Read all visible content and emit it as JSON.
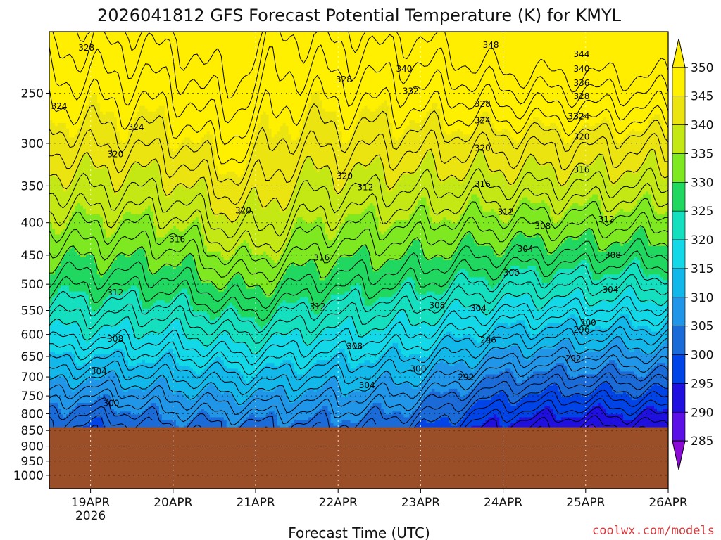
{
  "chart_data": {
    "type": "heatmap",
    "title": "2026041812 GFS Forecast Potential Temperature (K) for KMYL",
    "xlabel": "Forecast Time (UTC)",
    "credit": "coolwx.com/models",
    "x_ticks": [
      {
        "day": 19,
        "label": "19APR",
        "sublabel": "2026"
      },
      {
        "day": 20,
        "label": "20APR",
        "sublabel": ""
      },
      {
        "day": 21,
        "label": "21APR",
        "sublabel": ""
      },
      {
        "day": 22,
        "label": "22APR",
        "sublabel": ""
      },
      {
        "day": 23,
        "label": "23APR",
        "sublabel": ""
      },
      {
        "day": 24,
        "label": "24APR",
        "sublabel": ""
      },
      {
        "day": 25,
        "label": "25APR",
        "sublabel": ""
      },
      {
        "day": 26,
        "label": "26APR",
        "sublabel": ""
      }
    ],
    "xlim_days": [
      18.5,
      26
    ],
    "y_ticks": [
      250,
      300,
      350,
      400,
      450,
      500,
      550,
      600,
      650,
      700,
      750,
      800,
      850,
      900,
      950,
      1000
    ],
    "ylim_hpa": [
      200,
      1050
    ],
    "surface_pressure_hpa": 840,
    "colorbar": {
      "levels": [
        285,
        290,
        295,
        300,
        305,
        310,
        315,
        320,
        325,
        330,
        335,
        340,
        345,
        350
      ],
      "colors": [
        "#8c0ad6",
        "#5a10e6",
        "#1f10e0",
        "#0044e8",
        "#1a6ad8",
        "#2196e8",
        "#12b8ea",
        "#12d8e8",
        "#14e0c0",
        "#20d860",
        "#7ee820",
        "#c4e814",
        "#ece410",
        "#fff000"
      ],
      "under_color": "#a000d0",
      "over_color": "#ffee00"
    },
    "contour_labels": [
      {
        "day": 18.95,
        "p": 212,
        "v": "328"
      },
      {
        "day": 18.62,
        "p": 262,
        "v": "324"
      },
      {
        "day": 19.55,
        "p": 283,
        "v": "324"
      },
      {
        "day": 19.3,
        "p": 312,
        "v": "320"
      },
      {
        "day": 20.85,
        "p": 383,
        "v": "320"
      },
      {
        "day": 20.05,
        "p": 425,
        "v": "316"
      },
      {
        "day": 19.3,
        "p": 515,
        "v": "312"
      },
      {
        "day": 19.3,
        "p": 610,
        "v": "308"
      },
      {
        "day": 19.1,
        "p": 687,
        "v": "304"
      },
      {
        "day": 19.25,
        "p": 770,
        "v": "300"
      },
      {
        "day": 22.07,
        "p": 238,
        "v": "328"
      },
      {
        "day": 22.8,
        "p": 229,
        "v": "340"
      },
      {
        "day": 22.88,
        "p": 248,
        "v": "332"
      },
      {
        "day": 22.08,
        "p": 338,
        "v": "320"
      },
      {
        "day": 22.33,
        "p": 352,
        "v": "312"
      },
      {
        "day": 21.8,
        "p": 454,
        "v": "316"
      },
      {
        "day": 21.75,
        "p": 542,
        "v": "312"
      },
      {
        "day": 22.2,
        "p": 626,
        "v": "308"
      },
      {
        "day": 23.2,
        "p": 540,
        "v": "308"
      },
      {
        "day": 22.35,
        "p": 722,
        "v": "304"
      },
      {
        "day": 22.97,
        "p": 680,
        "v": "300"
      },
      {
        "day": 23.7,
        "p": 546,
        "v": "304"
      },
      {
        "day": 23.82,
        "p": 612,
        "v": "296"
      },
      {
        "day": 23.55,
        "p": 701,
        "v": "292"
      },
      {
        "day": 23.85,
        "p": 210,
        "v": "348"
      },
      {
        "day": 23.75,
        "p": 260,
        "v": "328"
      },
      {
        "day": 23.75,
        "p": 276,
        "v": "324"
      },
      {
        "day": 23.75,
        "p": 305,
        "v": "320"
      },
      {
        "day": 23.75,
        "p": 348,
        "v": "316"
      },
      {
        "day": 24.03,
        "p": 385,
        "v": "312"
      },
      {
        "day": 24.48,
        "p": 405,
        "v": "308"
      },
      {
        "day": 24.27,
        "p": 440,
        "v": "304"
      },
      {
        "day": 24.1,
        "p": 480,
        "v": "300"
      },
      {
        "day": 24.95,
        "p": 217,
        "v": "344"
      },
      {
        "day": 24.95,
        "p": 229,
        "v": "340"
      },
      {
        "day": 24.95,
        "p": 241,
        "v": "336"
      },
      {
        "day": 24.95,
        "p": 253,
        "v": "328"
      },
      {
        "day": 24.88,
        "p": 272,
        "v": "332"
      },
      {
        "day": 24.95,
        "p": 272,
        "v": "324"
      },
      {
        "day": 24.95,
        "p": 293,
        "v": "320"
      },
      {
        "day": 24.95,
        "p": 330,
        "v": "316"
      },
      {
        "day": 25.25,
        "p": 395,
        "v": "312"
      },
      {
        "day": 25.33,
        "p": 450,
        "v": "308"
      },
      {
        "day": 25.3,
        "p": 510,
        "v": "304"
      },
      {
        "day": 25.03,
        "p": 575,
        "v": "300"
      },
      {
        "day": 24.95,
        "p": 590,
        "v": "296"
      },
      {
        "day": 24.85,
        "p": 655,
        "v": "292"
      }
    ]
  }
}
